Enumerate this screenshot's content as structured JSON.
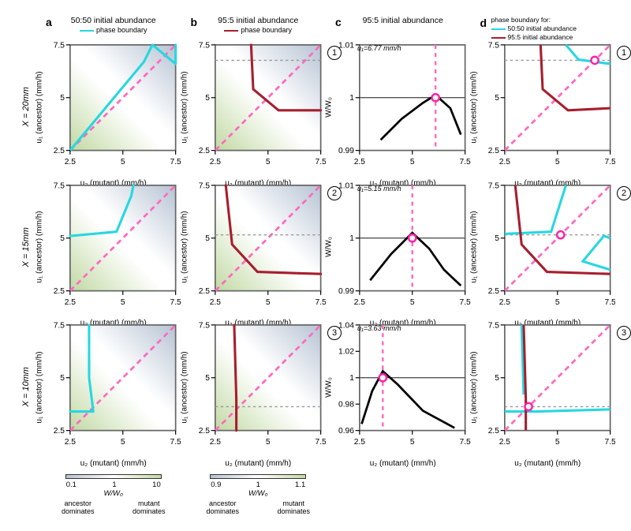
{
  "columns": {
    "a": {
      "letter": "a",
      "title": "50:50 initial abundance",
      "legend": "phase boundary",
      "legend_color": "#27d7e0"
    },
    "b": {
      "letter": "b",
      "title": "95:5 initial abundance",
      "legend": "phase boundary",
      "legend_color": "#a71e2e"
    },
    "c": {
      "letter": "c",
      "title": "95:5 initial abundance"
    },
    "d": {
      "letter": "d",
      "title_pre": "phase boundary for:",
      "leg1": "50:50 initial abundance",
      "leg2": "95:5 initial abundance",
      "leg1_color": "#27d7e0",
      "leg2_color": "#a71e2e"
    }
  },
  "row_labels": [
    "X = 20mm",
    "X = 15mm",
    "X = 10mm"
  ],
  "axes": {
    "x_label": "u₂ (mutant) (mm/h)",
    "y_label_u1": "u₁ (ancestor) (mm/h)",
    "y_label_w": "W/W₀",
    "xlim": [
      2.5,
      7.5
    ],
    "xticks": [
      2.5,
      5.0,
      7.5
    ],
    "ylim": [
      2.5,
      7.5
    ],
    "yticks": [
      2.5,
      5.0,
      7.5
    ]
  },
  "c_panels": [
    {
      "u1_text": "u₁=6.77 mm/h",
      "ylim": [
        0.99,
        1.01
      ],
      "yticks": [
        "0.99",
        "1.00",
        "1.01"
      ],
      "peak_x": 6.1,
      "curve": [
        [
          3.5,
          0.992
        ],
        [
          4.5,
          0.996
        ],
        [
          5.5,
          0.999
        ],
        [
          6.1,
          1.0005
        ],
        [
          6.8,
          0.998
        ],
        [
          7.3,
          0.993
        ]
      ]
    },
    {
      "u1_text": "u₁=5.15 mm/h",
      "ylim": [
        0.99,
        1.01
      ],
      "yticks": [
        "0.990",
        "1.000",
        "1.010"
      ],
      "peak_x": 5.0,
      "curve": [
        [
          3.0,
          0.992
        ],
        [
          4.0,
          0.997
        ],
        [
          5.0,
          1.001
        ],
        [
          5.8,
          0.998
        ],
        [
          6.5,
          0.994
        ],
        [
          7.3,
          0.991
        ]
      ]
    },
    {
      "u1_text": "u₁=3.63 mm/h",
      "ylim": [
        0.96,
        1.04
      ],
      "yticks": [
        "0.96",
        "0.98",
        "1.00",
        "1.02",
        "1.04"
      ],
      "peak_x": 3.6,
      "curve": [
        [
          2.6,
          0.965
        ],
        [
          3.1,
          0.99
        ],
        [
          3.6,
          1.005
        ],
        [
          4.3,
          0.995
        ],
        [
          5.5,
          0.975
        ],
        [
          7.0,
          0.962
        ]
      ]
    }
  ],
  "badges": [
    "1",
    "2",
    "3"
  ],
  "colorbars": {
    "a": {
      "ticks": [
        "0.1",
        "1",
        "10"
      ],
      "center": "W/W₀",
      "left": "ancestor dominates",
      "right": "mutant dominates"
    },
    "b": {
      "ticks": [
        "0.9",
        "1",
        "1.1"
      ],
      "center": "W/W₀",
      "left": "ancestor dominates",
      "right": "mutant dominates"
    }
  },
  "colors": {
    "heatmap_low": "#b6c3d3",
    "heatmap_mid": "#ffffff",
    "heatmap_high": "#c1d9a3",
    "diag": "#ff69c0",
    "cyan": "#27d7e0",
    "darkred": "#a71e2e",
    "marker_ring": "#ff1fa8",
    "panel_border": "#666666",
    "grid_ref": "#999999"
  },
  "ab_boundaries": {
    "a": [
      [
        [
          2.5,
          2.5
        ],
        [
          6.0,
          6.7
        ],
        [
          6.4,
          7.5
        ],
        [
          7.5,
          6.6
        ],
        [
          7.5,
          7.5
        ]
      ],
      [
        [
          2.5,
          5.1
        ],
        [
          4.7,
          5.3
        ],
        [
          5.4,
          7.0
        ],
        [
          5.5,
          7.5
        ]
      ],
      [
        [
          2.5,
          3.4
        ],
        [
          3.6,
          3.4
        ],
        [
          3.4,
          5.0
        ],
        [
          3.4,
          7.5
        ]
      ]
    ],
    "b": [
      [
        [
          4.2,
          7.5
        ],
        [
          4.3,
          5.4
        ],
        [
          5.5,
          4.4
        ],
        [
          7.5,
          4.4
        ]
      ],
      [
        [
          3.0,
          7.5
        ],
        [
          3.3,
          4.7
        ],
        [
          4.5,
          3.4
        ],
        [
          7.5,
          3.3
        ]
      ],
      [
        [
          3.4,
          7.5
        ],
        [
          3.5,
          4.0
        ],
        [
          3.5,
          2.5
        ]
      ]
    ]
  },
  "d_boundaries": [
    {
      "cyan": [
        [
          5.4,
          7.5
        ],
        [
          6.0,
          6.8
        ],
        [
          7.5,
          6.6
        ]
      ],
      "red": [
        [
          4.2,
          7.5
        ],
        [
          4.3,
          5.4
        ],
        [
          5.5,
          4.4
        ],
        [
          7.5,
          4.5
        ]
      ],
      "marker": [
        6.77,
        6.77
      ],
      "hline_y": 6.77
    },
    {
      "cyan": [
        [
          2.5,
          5.2
        ],
        [
          4.7,
          5.3
        ],
        [
          5.4,
          7.5
        ]
      ],
      "cyan2": [
        [
          7.5,
          3.5
        ],
        [
          6.2,
          3.9
        ],
        [
          7.2,
          5.1
        ],
        [
          7.5,
          5.0
        ]
      ],
      "red": [
        [
          3.0,
          7.5
        ],
        [
          3.3,
          4.7
        ],
        [
          4.5,
          3.4
        ],
        [
          7.5,
          3.3
        ]
      ],
      "marker": [
        5.15,
        5.15
      ],
      "hline_y": 5.15
    },
    {
      "cyan": [
        [
          2.5,
          3.4
        ],
        [
          4.0,
          3.4
        ],
        [
          7.5,
          3.5
        ]
      ],
      "cyan2": [
        [
          3.3,
          7.5
        ],
        [
          3.4,
          4.2
        ]
      ],
      "red": [
        [
          3.4,
          7.5
        ],
        [
          3.5,
          4.0
        ],
        [
          3.5,
          2.5
        ]
      ],
      "marker": [
        3.63,
        3.63
      ],
      "hline_y": 3.63
    }
  ]
}
